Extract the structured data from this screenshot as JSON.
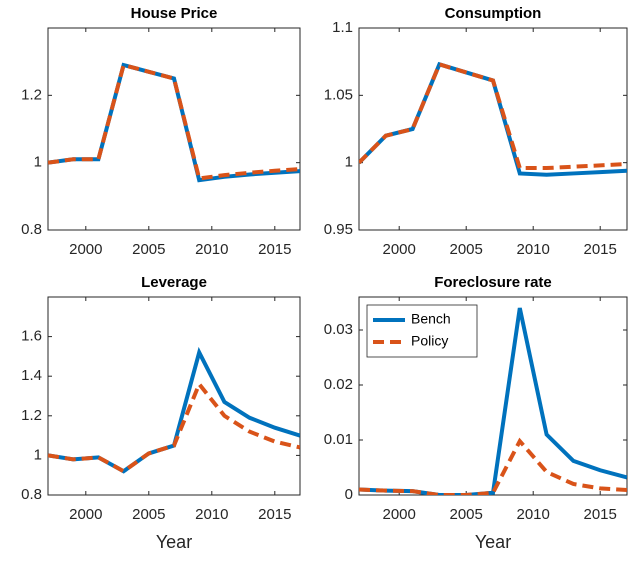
{
  "chart_data": [
    {
      "type": "line",
      "title": "House Price",
      "x": [
        1997,
        1999,
        2001,
        2003,
        2005,
        2007,
        2009,
        2011,
        2013,
        2015,
        2017
      ],
      "series": [
        {
          "color": "#0072bd",
          "linestyle": "solid",
          "values": [
            1.0,
            1.01,
            1.01,
            1.29,
            1.27,
            1.25,
            0.948,
            0.958,
            0.965,
            0.97,
            0.975
          ]
        },
        {
          "color": "#d95319",
          "linestyle": "dashed",
          "values": [
            1.0,
            1.01,
            1.01,
            1.29,
            1.27,
            1.25,
            0.953,
            0.963,
            0.97,
            0.976,
            0.981
          ]
        }
      ],
      "xlim": [
        1997,
        2017
      ],
      "xticks": [
        2000,
        2005,
        2010,
        2015
      ],
      "ylim": [
        0.8,
        1.4
      ],
      "yticks": [
        0.8,
        1,
        1.2
      ]
    },
    {
      "type": "line",
      "title": "Consumption",
      "x": [
        1997,
        1999,
        2001,
        2003,
        2005,
        2007,
        2009,
        2011,
        2013,
        2015,
        2017
      ],
      "series": [
        {
          "color": "#0072bd",
          "linestyle": "solid",
          "values": [
            1.0,
            1.02,
            1.025,
            1.073,
            1.067,
            1.061,
            0.992,
            0.991,
            0.992,
            0.993,
            0.994
          ]
        },
        {
          "color": "#d95319",
          "linestyle": "dashed",
          "values": [
            1.0,
            1.02,
            1.025,
            1.073,
            1.067,
            1.061,
            0.996,
            0.996,
            0.997,
            0.998,
            0.999
          ]
        }
      ],
      "xlim": [
        1997,
        2017
      ],
      "xticks": [
        2000,
        2005,
        2010,
        2015
      ],
      "ylim": [
        0.95,
        1.1
      ],
      "yticks": [
        0.95,
        1,
        1.05,
        1.1
      ]
    },
    {
      "type": "line",
      "title": "Leverage",
      "xlabel": "Year",
      "x": [
        1997,
        1999,
        2001,
        2003,
        2005,
        2007,
        2009,
        2011,
        2013,
        2015,
        2017
      ],
      "series": [
        {
          "color": "#0072bd",
          "linestyle": "solid",
          "values": [
            1.0,
            0.98,
            0.99,
            0.92,
            1.01,
            1.05,
            1.52,
            1.27,
            1.19,
            1.14,
            1.1
          ]
        },
        {
          "color": "#d95319",
          "linestyle": "dashed",
          "values": [
            1.0,
            0.98,
            0.99,
            0.92,
            1.01,
            1.05,
            1.36,
            1.2,
            1.12,
            1.07,
            1.04
          ]
        }
      ],
      "xlim": [
        1997,
        2017
      ],
      "xticks": [
        2000,
        2005,
        2010,
        2015
      ],
      "ylim": [
        0.8,
        1.8
      ],
      "yticks": [
        0.8,
        1,
        1.2,
        1.4,
        1.6
      ]
    },
    {
      "type": "line",
      "title": "Foreclosure rate",
      "xlabel": "Year",
      "legend": "upper left",
      "x": [
        1997,
        1999,
        2001,
        2003,
        2005,
        2007,
        2009,
        2011,
        2013,
        2015,
        2017
      ],
      "series": [
        {
          "name": "Bench",
          "color": "#0072bd",
          "linestyle": "solid",
          "values": [
            0.001,
            0.0008,
            0.0007,
            0.0,
            0.0,
            0.0004,
            0.034,
            0.011,
            0.0062,
            0.0045,
            0.0032
          ]
        },
        {
          "name": "Policy",
          "color": "#d95319",
          "linestyle": "dashed",
          "values": [
            0.001,
            0.0008,
            0.0007,
            0.0,
            0.0,
            0.0004,
            0.0098,
            0.0042,
            0.002,
            0.0012,
            0.0009
          ]
        }
      ],
      "xlim": [
        1997,
        2017
      ],
      "xticks": [
        2000,
        2005,
        2010,
        2015
      ],
      "ylim": [
        0,
        0.036
      ],
      "yticks": [
        0,
        0.01,
        0.02,
        0.03
      ]
    }
  ]
}
